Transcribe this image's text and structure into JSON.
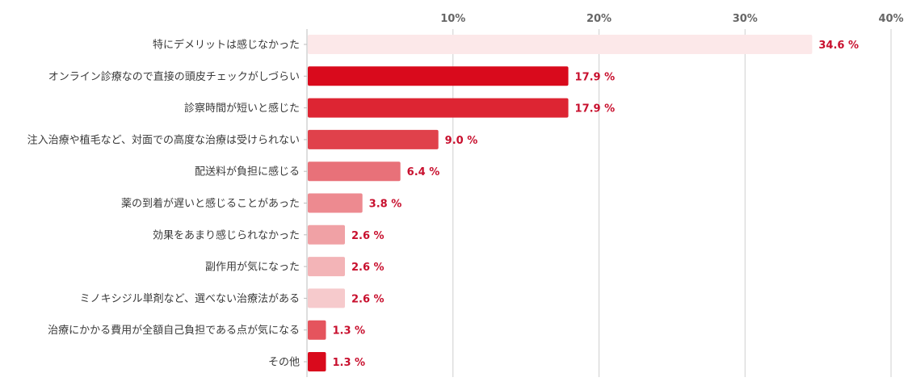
{
  "chart_data": {
    "type": "bar",
    "orientation": "horizontal",
    "categories": [
      "特にデメリットは感じなかった",
      "オンライン診療なので直接の頭皮チェックがしづらい",
      "診察時間が短いと感じた",
      "注入治療や植毛など、対面での高度な治療は受けられない",
      "配送料が負担に感じる",
      "薬の到着が遅いと感じることがあった",
      "効果をあまり感じられなかった",
      "副作用が気になった",
      "ミノキシジル単剤など、選べない治療法がある",
      "治療にかかる費用が全額自己負担である点が気になる",
      "その他"
    ],
    "values": [
      34.6,
      17.9,
      17.9,
      9.0,
      6.4,
      3.8,
      2.6,
      2.6,
      2.6,
      1.3,
      1.3
    ],
    "value_labels": [
      "34.6 %",
      "17.9 %",
      "17.9 %",
      "9.0 %",
      "6.4 %",
      "3.8 %",
      "2.6 %",
      "2.6 %",
      "2.6 %",
      "1.3 %",
      "1.3 %"
    ],
    "bar_colors": [
      "#fce8e9",
      "#d90a1c",
      "#dd2533",
      "#e0414b",
      "#e87179",
      "#ed8a90",
      "#f0a1a5",
      "#f3b4b7",
      "#f6cacc",
      "#e5545d",
      "#d90a1c"
    ],
    "value_label_color": "#c8102e",
    "xlim": [
      0,
      40
    ],
    "xticks": [
      10,
      20,
      30,
      40
    ],
    "xtick_labels": [
      "10%",
      "20%",
      "30%",
      "40%"
    ],
    "grid": true,
    "title": "",
    "xlabel": "",
    "ylabel": ""
  }
}
